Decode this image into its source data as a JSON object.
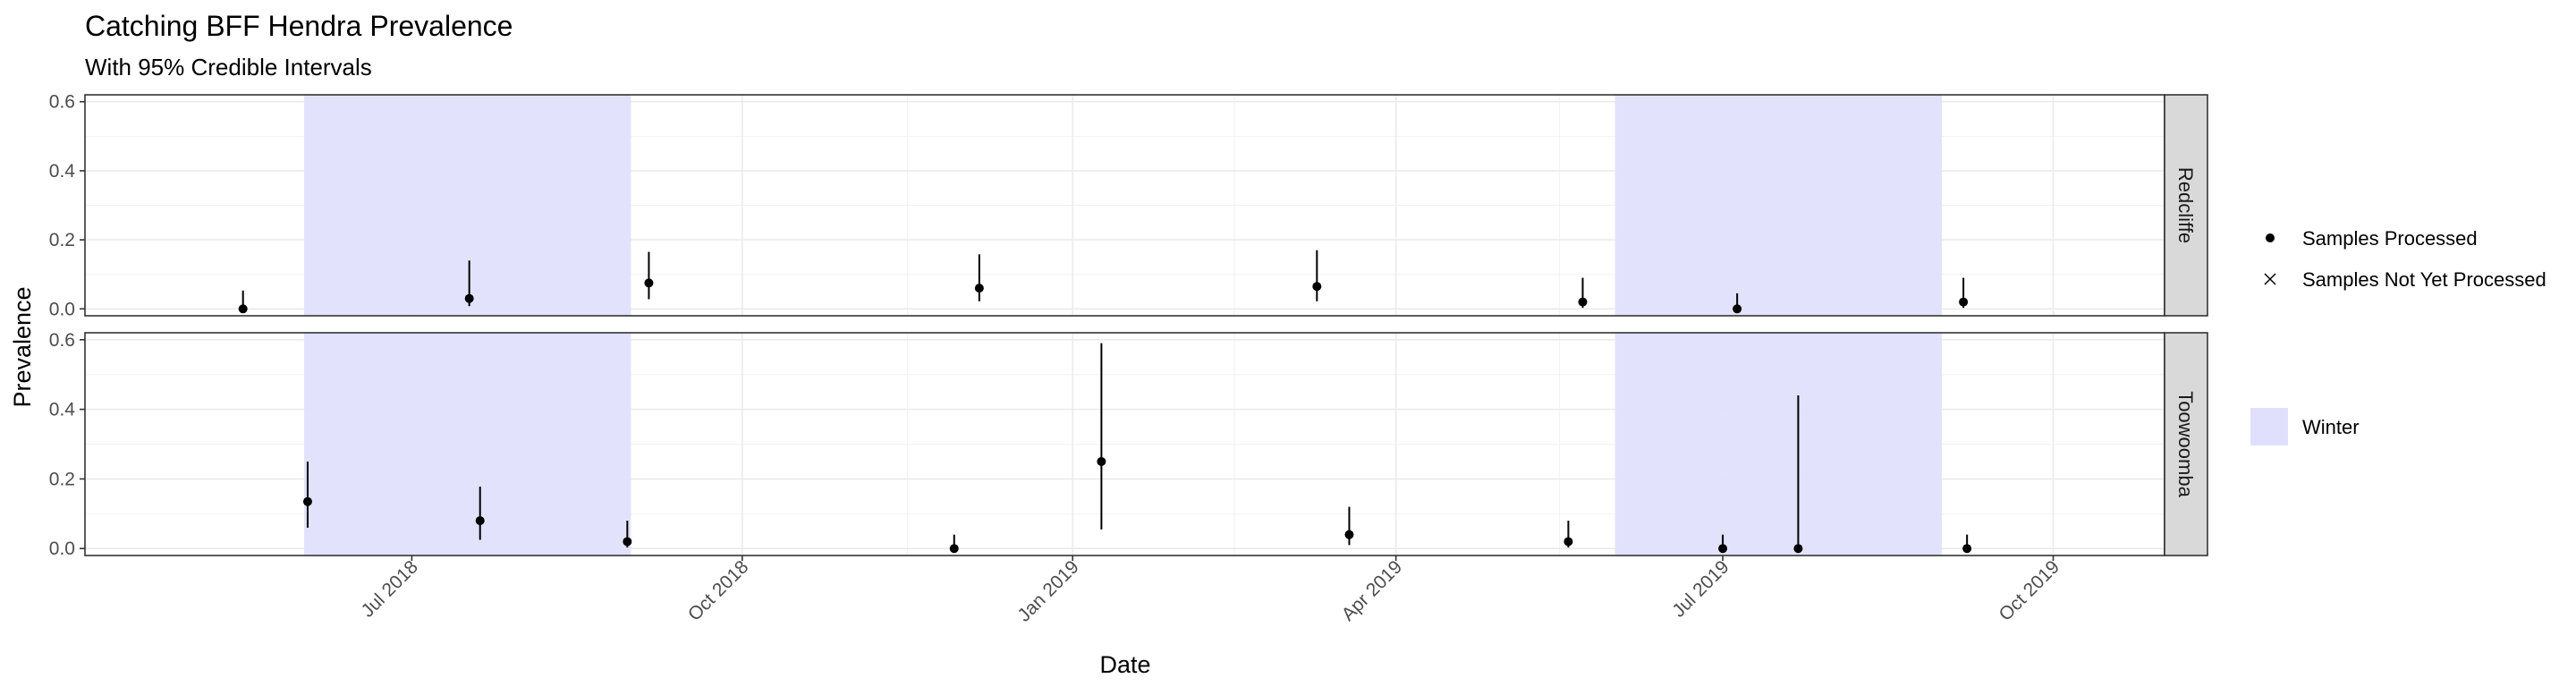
{
  "chart_data": {
    "type": "scatter",
    "title": "Catching BFF Hendra Prevalence",
    "subtitle": "With 95% Credible Intervals",
    "xlabel": "Date",
    "ylabel": "Prevalence",
    "xlim": [
      "2018-04-01",
      "2019-11-01"
    ],
    "ylim": [
      -0.02,
      0.62
    ],
    "x_ticks": [
      {
        "date": "2018-07-01",
        "label": "Jul 2018"
      },
      {
        "date": "2018-10-01",
        "label": "Oct 2018"
      },
      {
        "date": "2019-01-01",
        "label": "Jan 2019"
      },
      {
        "date": "2019-04-01",
        "label": "Apr 2019"
      },
      {
        "date": "2019-07-01",
        "label": "Jul 2019"
      },
      {
        "date": "2019-10-01",
        "label": "Oct 2019"
      }
    ],
    "y_ticks": [
      0.0,
      0.2,
      0.4,
      0.6
    ],
    "y_tick_labels": [
      "0.0",
      "0.2",
      "0.4",
      "0.6"
    ],
    "grid": true,
    "legend_position": "right",
    "legend": {
      "processed": "Samples Processed",
      "not_processed": "Samples Not Yet Processed",
      "winter": "Winter"
    },
    "winter_periods": [
      {
        "start": "2018-06-01",
        "end": "2018-08-31"
      },
      {
        "start": "2019-06-01",
        "end": "2019-08-31"
      }
    ],
    "colors": {
      "winter_fill": "#e0e0fc",
      "point": "#000000",
      "strip_bg": "#d9d9d9",
      "panel_border": "#333333",
      "grid": "#ebebeb"
    },
    "panels": [
      {
        "name": "Redcliffe",
        "points": [
          {
            "date": "2018-05-15",
            "prevalence": 0.0,
            "lower": 0.0,
            "upper": 0.053,
            "status": "processed"
          },
          {
            "date": "2018-07-17",
            "prevalence": 0.03,
            "lower": 0.008,
            "upper": 0.14,
            "status": "processed"
          },
          {
            "date": "2018-09-05",
            "prevalence": 0.075,
            "lower": 0.028,
            "upper": 0.165,
            "status": "processed"
          },
          {
            "date": "2018-12-06",
            "prevalence": 0.06,
            "lower": 0.022,
            "upper": 0.158,
            "status": "processed"
          },
          {
            "date": "2019-03-10",
            "prevalence": 0.065,
            "lower": 0.022,
            "upper": 0.17,
            "status": "processed"
          },
          {
            "date": "2019-05-23",
            "prevalence": 0.02,
            "lower": 0.003,
            "upper": 0.09,
            "status": "processed"
          },
          {
            "date": "2019-07-05",
            "prevalence": 0.0,
            "lower": 0.0,
            "upper": 0.045,
            "status": "processed"
          },
          {
            "date": "2019-09-06",
            "prevalence": 0.02,
            "lower": 0.003,
            "upper": 0.09,
            "status": "processed"
          }
        ]
      },
      {
        "name": "Toowoomba",
        "points": [
          {
            "date": "2018-06-02",
            "prevalence": 0.135,
            "lower": 0.06,
            "upper": 0.25,
            "status": "processed"
          },
          {
            "date": "2018-07-20",
            "prevalence": 0.08,
            "lower": 0.025,
            "upper": 0.178,
            "status": "processed"
          },
          {
            "date": "2018-08-30",
            "prevalence": 0.02,
            "lower": 0.003,
            "upper": 0.08,
            "status": "processed"
          },
          {
            "date": "2018-11-29",
            "prevalence": 0.0,
            "lower": 0.0,
            "upper": 0.04,
            "status": "processed"
          },
          {
            "date": "2019-01-09",
            "prevalence": 0.25,
            "lower": 0.055,
            "upper": 0.59,
            "status": "processed"
          },
          {
            "date": "2019-03-19",
            "prevalence": 0.04,
            "lower": 0.01,
            "upper": 0.12,
            "status": "processed"
          },
          {
            "date": "2019-05-19",
            "prevalence": 0.02,
            "lower": 0.003,
            "upper": 0.08,
            "status": "processed"
          },
          {
            "date": "2019-07-01",
            "prevalence": 0.0,
            "lower": 0.0,
            "upper": 0.04,
            "status": "processed"
          },
          {
            "date": "2019-07-22",
            "prevalence": 0.0,
            "lower": 0.0,
            "upper": 0.44,
            "status": "processed"
          },
          {
            "date": "2019-09-07",
            "prevalence": 0.0,
            "lower": 0.0,
            "upper": 0.04,
            "status": "processed"
          }
        ]
      }
    ]
  }
}
